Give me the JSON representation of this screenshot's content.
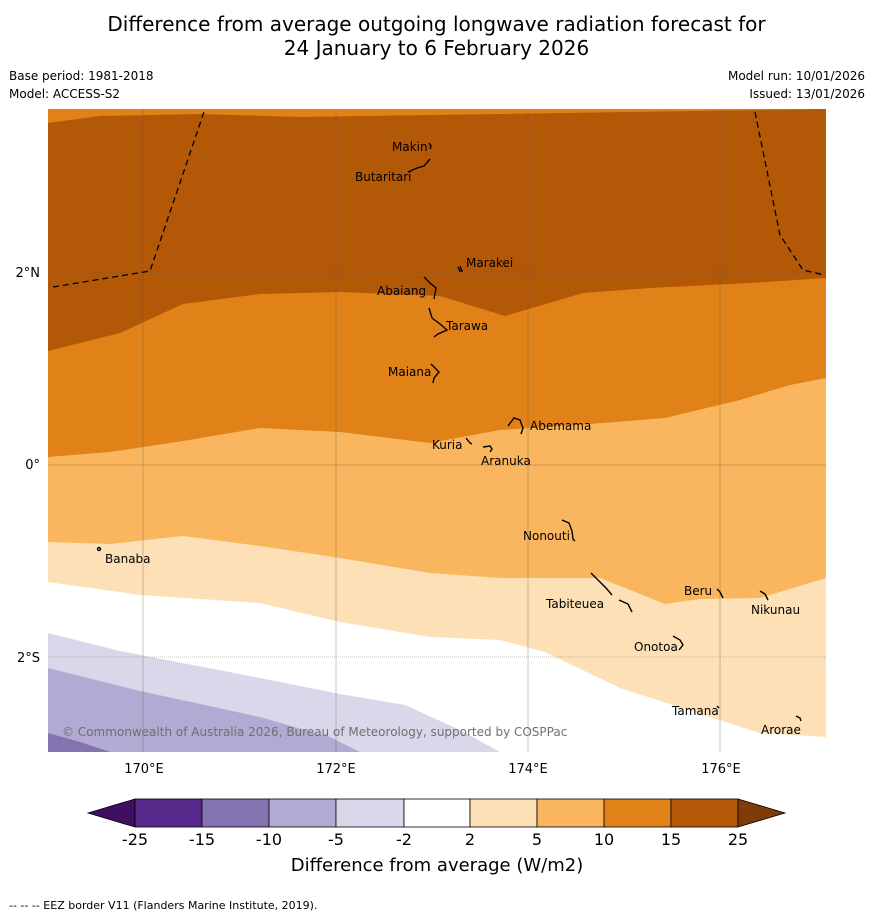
{
  "title": {
    "line1": "Difference from average outgoing longwave radiation forecast for",
    "line2": "24 January to 6 February 2026"
  },
  "meta": {
    "base_period": "Base period: 1981-2018",
    "model": "Model: ACCESS-S2",
    "model_run": "Model run: 10/01/2026",
    "issued": "Issued: 13/01/2026"
  },
  "axes": {
    "lat_labels": [
      "2°N",
      "0°",
      "2°S"
    ],
    "lon_labels": [
      "170°E",
      "172°E",
      "174°E",
      "176°E"
    ]
  },
  "places": [
    {
      "name": "Makin",
      "id": "makin"
    },
    {
      "name": "Butaritari",
      "id": "butaritari"
    },
    {
      "name": "Marakei",
      "id": "marakei"
    },
    {
      "name": "Abaiang",
      "id": "abaiang"
    },
    {
      "name": "Tarawa",
      "id": "tarawa"
    },
    {
      "name": "Maiana",
      "id": "maiana"
    },
    {
      "name": "Abemama",
      "id": "abemama"
    },
    {
      "name": "Kuria",
      "id": "kuria"
    },
    {
      "name": "Aranuka",
      "id": "aranuka"
    },
    {
      "name": "Nonouti",
      "id": "nonouti"
    },
    {
      "name": "Banaba",
      "id": "banaba"
    },
    {
      "name": "Beru",
      "id": "beru"
    },
    {
      "name": "Tabiteuea",
      "id": "tabiteuea"
    },
    {
      "name": "Nikunau",
      "id": "nikunau"
    },
    {
      "name": "Onotoa",
      "id": "onotoa"
    },
    {
      "name": "Tamana",
      "id": "tamana"
    },
    {
      "name": "Arorae",
      "id": "arorae"
    }
  ],
  "copyright": "© Commonwealth of Australia 2026, Bureau of Meteorology, supported by COSPPac",
  "colorbar": {
    "ticks": [
      "-25",
      "-15",
      "-10",
      "-5",
      "-2",
      "2",
      "5",
      "10",
      "15",
      "25"
    ],
    "colors": [
      "#3d1063",
      "#58298a",
      "#8373ae",
      "#b1aad2",
      "#d8d8ea",
      "#ffffff",
      "#fde0b6",
      "#fab65e",
      "#e08217",
      "#b35806",
      "#7f3b08"
    ],
    "label": "Difference from average (W/m2)"
  },
  "legend_note": "--  --  -- EEZ border V11 (Flanders Marine Institute, 2019)."
}
